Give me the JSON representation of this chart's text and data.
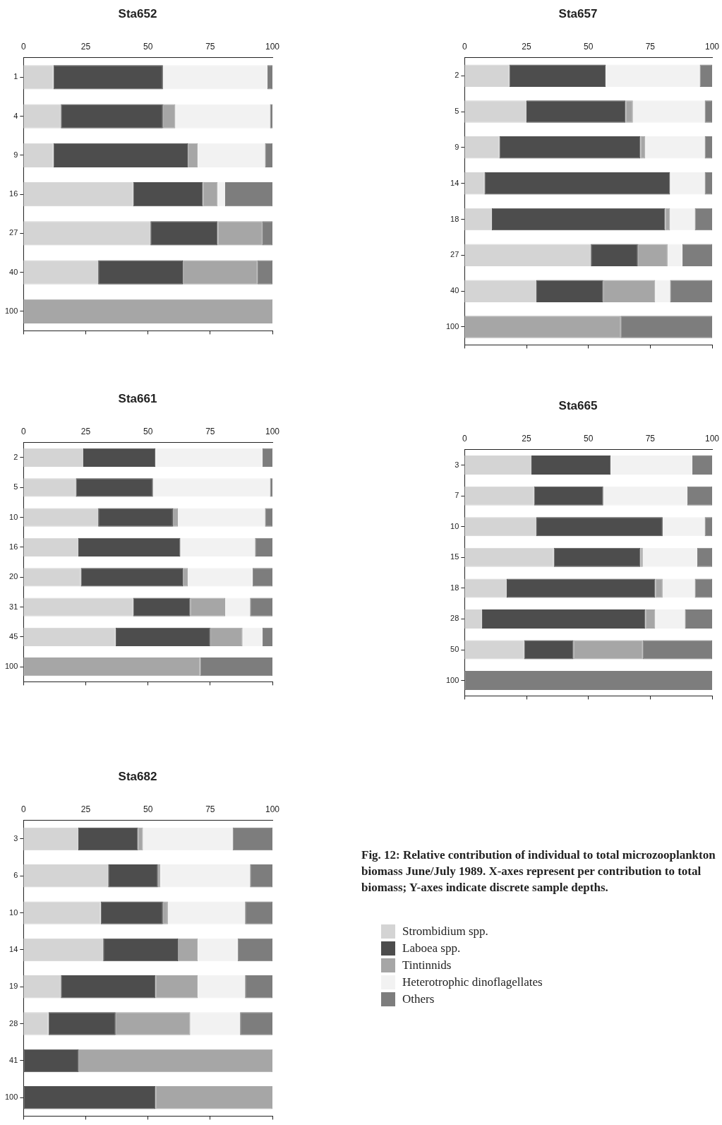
{
  "chart_data": [
    {
      "type": "bar",
      "title": "Sta652",
      "orientation": "horizontal",
      "stacked": true,
      "categories": [
        "1",
        "4",
        "9",
        "16",
        "27",
        "40",
        "100"
      ],
      "xlim": [
        0,
        100
      ],
      "xticks": [
        0,
        25,
        50,
        75,
        100
      ],
      "grid": false,
      "series": [
        {
          "color": "#d4d4d4",
          "values": [
            12,
            15,
            12,
            44,
            51,
            30,
            null
          ]
        },
        {
          "color": "#4d4d4d",
          "values": [
            44,
            41,
            54,
            28,
            27,
            34,
            null
          ]
        },
        {
          "color": "#a6a6a6",
          "values": [
            null,
            5,
            4,
            6,
            18,
            30,
            100
          ]
        },
        {
          "color": "#f2f2f2",
          "values": [
            42,
            38,
            27,
            3,
            null,
            null,
            null
          ]
        },
        {
          "color": "#7d7d7d",
          "values": [
            2,
            1,
            3,
            19,
            4,
            6,
            null
          ]
        }
      ]
    },
    {
      "type": "bar",
      "title": "Sta657",
      "orientation": "horizontal",
      "stacked": true,
      "categories": [
        "2",
        "5",
        "9",
        "14",
        "18",
        "27",
        "40",
        "100"
      ],
      "xlim": [
        0,
        100
      ],
      "xticks": [
        0,
        25,
        50,
        75,
        100
      ],
      "grid": false,
      "series": [
        {
          "color": "#d4d4d4",
          "values": [
            18,
            25,
            14,
            8,
            11,
            51,
            29,
            null
          ]
        },
        {
          "color": "#4d4d4d",
          "values": [
            39,
            40,
            57,
            75,
            70,
            19,
            27,
            null
          ]
        },
        {
          "color": "#a6a6a6",
          "values": [
            null,
            3,
            2,
            null,
            2,
            12,
            21,
            63
          ]
        },
        {
          "color": "#f2f2f2",
          "values": [
            38,
            29,
            24,
            14,
            10,
            6,
            6,
            null
          ]
        },
        {
          "color": "#7d7d7d",
          "values": [
            5,
            3,
            3,
            3,
            7,
            12,
            17,
            37
          ]
        }
      ]
    },
    {
      "type": "bar",
      "title": "Sta661",
      "orientation": "horizontal",
      "stacked": true,
      "categories": [
        "2",
        "5",
        "10",
        "16",
        "20",
        "31",
        "45",
        "100"
      ],
      "xlim": [
        0,
        100
      ],
      "xticks": [
        0,
        25,
        50,
        75,
        100
      ],
      "grid": false,
      "series": [
        {
          "color": "#d4d4d4",
          "values": [
            24,
            21,
            30,
            22,
            23,
            44,
            37,
            null
          ]
        },
        {
          "color": "#4d4d4d",
          "values": [
            29,
            31,
            30,
            41,
            41,
            23,
            38,
            null
          ]
        },
        {
          "color": "#a6a6a6",
          "values": [
            null,
            null,
            2,
            null,
            2,
            14,
            13,
            71
          ]
        },
        {
          "color": "#f2f2f2",
          "values": [
            43,
            47,
            35,
            30,
            26,
            10,
            8,
            null
          ]
        },
        {
          "color": "#7d7d7d",
          "values": [
            4,
            1,
            3,
            7,
            8,
            9,
            4,
            29
          ]
        }
      ]
    },
    {
      "type": "bar",
      "title": "Sta665",
      "orientation": "horizontal",
      "stacked": true,
      "categories": [
        "3",
        "7",
        "10",
        "15",
        "18",
        "28",
        "50",
        "100"
      ],
      "xlim": [
        0,
        100
      ],
      "xticks": [
        0,
        25,
        50,
        75,
        100
      ],
      "grid": false,
      "series": [
        {
          "color": "#d4d4d4",
          "values": [
            27,
            28,
            29,
            36,
            17,
            7,
            24,
            null
          ]
        },
        {
          "color": "#4d4d4d",
          "values": [
            32,
            28,
            51,
            35,
            60,
            66,
            20,
            null
          ]
        },
        {
          "color": "#a6a6a6",
          "values": [
            null,
            null,
            null,
            1,
            3,
            4,
            28,
            null
          ]
        },
        {
          "color": "#f2f2f2",
          "values": [
            33,
            34,
            17,
            22,
            13,
            12,
            null,
            null
          ]
        },
        {
          "color": "#7d7d7d",
          "values": [
            8,
            10,
            3,
            6,
            7,
            11,
            28,
            100
          ]
        }
      ]
    },
    {
      "type": "bar",
      "title": "Sta682",
      "orientation": "horizontal",
      "stacked": true,
      "categories": [
        "3",
        "6",
        "10",
        "14",
        "19",
        "28",
        "41",
        "100"
      ],
      "xlim": [
        0,
        100
      ],
      "xticks": [
        0,
        25,
        50,
        75,
        100
      ],
      "grid": false,
      "legend": "right",
      "annotations": [
        "Fig. 12: Relative contribution of individual to total microzooplankton biomass June/July 1989. X-axes represent per contribution to total biomass; Y-axes indicate discrete sample depths."
      ],
      "series": [
        {
          "name": "Strombidium spp.",
          "color": "#d4d4d4",
          "values": [
            22,
            34,
            31,
            32,
            15,
            10,
            null,
            null
          ]
        },
        {
          "name": "Laboea spp.",
          "color": "#4d4d4d",
          "values": [
            24,
            20,
            25,
            30,
            38,
            27,
            22,
            53
          ]
        },
        {
          "name": "Tintinnids",
          "color": "#a6a6a6",
          "values": [
            2,
            1,
            2,
            8,
            17,
            30,
            78,
            47
          ]
        },
        {
          "name": "Heterotrophic dinoflagellates",
          "color": "#f2f2f2",
          "values": [
            36,
            36,
            31,
            16,
            19,
            20,
            null,
            null
          ]
        },
        {
          "name": "Others",
          "color": "#7d7d7d",
          "values": [
            16,
            9,
            11,
            14,
            11,
            13,
            null,
            null
          ]
        }
      ]
    }
  ]
}
